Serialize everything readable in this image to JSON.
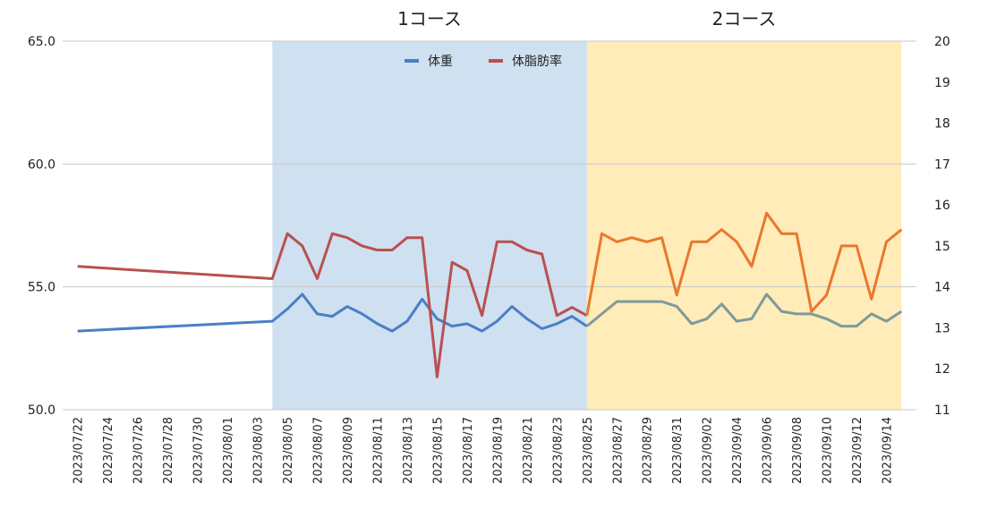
{
  "chart_data": {
    "type": "line",
    "title": "",
    "xlabel": "",
    "ylabel": "",
    "y_left": {
      "min": 50,
      "max": 65,
      "ticks": [
        "50.0",
        "55.0",
        "60.0",
        "65.0"
      ]
    },
    "y_right": {
      "min": 11,
      "max": 20,
      "ticks": [
        "11",
        "12",
        "13",
        "14",
        "15",
        "16",
        "17",
        "18",
        "19",
        "20"
      ]
    },
    "grid": true,
    "legend_position": "top",
    "x_tick_labels": [
      "2023/07/22",
      "2023/07/24",
      "2023/07/26",
      "2023/07/28",
      "2023/07/30",
      "2023/08/01",
      "2023/08/03",
      "2023/08/05",
      "2023/08/07",
      "2023/08/09",
      "2023/08/11",
      "2023/08/13",
      "2023/08/15",
      "2023/08/17",
      "2023/08/19",
      "2023/08/21",
      "2023/08/23",
      "2023/08/25",
      "2023/08/27",
      "2023/08/29",
      "2023/08/31",
      "2023/09/02",
      "2023/09/04",
      "2023/09/06",
      "2023/09/08",
      "2023/09/10",
      "2023/09/12",
      "2023/09/14"
    ],
    "courses": [
      {
        "label": "1コース",
        "start": "2023/08/04",
        "end": "2023/08/25",
        "color": "#cfe0f1"
      },
      {
        "label": "2コース",
        "start": "2023/08/25",
        "end": "2023/09/15",
        "color": "#ffecb8"
      }
    ],
    "series": [
      {
        "name": "体重",
        "axis": "left",
        "color": "#4a7fc4",
        "course2_color": "#7f9a9a",
        "points": [
          [
            "2023/07/22",
            53.2
          ],
          [
            "2023/08/04",
            53.6
          ],
          [
            "2023/08/05",
            54.1
          ],
          [
            "2023/08/06",
            54.7
          ],
          [
            "2023/08/07",
            53.9
          ],
          [
            "2023/08/08",
            53.8
          ],
          [
            "2023/08/09",
            54.2
          ],
          [
            "2023/08/10",
            53.9
          ],
          [
            "2023/08/11",
            53.5
          ],
          [
            "2023/08/12",
            53.2
          ],
          [
            "2023/08/13",
            53.6
          ],
          [
            "2023/08/14",
            54.5
          ],
          [
            "2023/08/15",
            53.7
          ],
          [
            "2023/08/16",
            53.4
          ],
          [
            "2023/08/17",
            53.5
          ],
          [
            "2023/08/18",
            53.2
          ],
          [
            "2023/08/19",
            53.6
          ],
          [
            "2023/08/20",
            54.2
          ],
          [
            "2023/08/21",
            53.7
          ],
          [
            "2023/08/22",
            53.3
          ],
          [
            "2023/08/23",
            53.5
          ],
          [
            "2023/08/24",
            53.8
          ],
          [
            "2023/08/25",
            53.4
          ],
          [
            "2023/08/26",
            53.9
          ],
          [
            "2023/08/27",
            54.4
          ],
          [
            "2023/08/28",
            54.4
          ],
          [
            "2023/08/29",
            54.4
          ],
          [
            "2023/08/30",
            54.4
          ],
          [
            "2023/08/31",
            54.2
          ],
          [
            "2023/09/01",
            53.5
          ],
          [
            "2023/09/02",
            53.7
          ],
          [
            "2023/09/03",
            54.3
          ],
          [
            "2023/09/04",
            53.6
          ],
          [
            "2023/09/05",
            53.7
          ],
          [
            "2023/09/06",
            54.7
          ],
          [
            "2023/09/07",
            54.0
          ],
          [
            "2023/09/08",
            53.9
          ],
          [
            "2023/09/09",
            53.9
          ],
          [
            "2023/09/10",
            53.7
          ],
          [
            "2023/09/11",
            53.4
          ],
          [
            "2023/09/12",
            53.4
          ],
          [
            "2023/09/13",
            53.9
          ],
          [
            "2023/09/14",
            53.6
          ],
          [
            "2023/09/15",
            54.0
          ]
        ]
      },
      {
        "name": "体脂肪率",
        "axis": "right",
        "color": "#b8514f",
        "course2_color": "#e8782e",
        "points": [
          [
            "2023/07/22",
            14.5
          ],
          [
            "2023/08/04",
            14.2
          ],
          [
            "2023/08/05",
            15.3
          ],
          [
            "2023/08/06",
            15.0
          ],
          [
            "2023/08/07",
            14.2
          ],
          [
            "2023/08/08",
            15.3
          ],
          [
            "2023/08/09",
            15.2
          ],
          [
            "2023/08/10",
            15.0
          ],
          [
            "2023/08/11",
            14.9
          ],
          [
            "2023/08/12",
            14.9
          ],
          [
            "2023/08/13",
            15.2
          ],
          [
            "2023/08/14",
            15.2
          ],
          [
            "2023/08/15",
            11.8
          ],
          [
            "2023/08/16",
            14.6
          ],
          [
            "2023/08/17",
            14.4
          ],
          [
            "2023/08/18",
            13.3
          ],
          [
            "2023/08/19",
            15.1
          ],
          [
            "2023/08/20",
            15.1
          ],
          [
            "2023/08/21",
            14.9
          ],
          [
            "2023/08/22",
            14.8
          ],
          [
            "2023/08/23",
            13.3
          ],
          [
            "2023/08/24",
            13.5
          ],
          [
            "2023/08/25",
            13.3
          ],
          [
            "2023/08/26",
            15.3
          ],
          [
            "2023/08/27",
            15.1
          ],
          [
            "2023/08/28",
            15.2
          ],
          [
            "2023/08/29",
            15.1
          ],
          [
            "2023/08/30",
            15.2
          ],
          [
            "2023/08/31",
            13.8
          ],
          [
            "2023/09/01",
            15.1
          ],
          [
            "2023/09/02",
            15.1
          ],
          [
            "2023/09/03",
            15.4
          ],
          [
            "2023/09/04",
            15.1
          ],
          [
            "2023/09/05",
            14.5
          ],
          [
            "2023/09/06",
            15.8
          ],
          [
            "2023/09/07",
            15.3
          ],
          [
            "2023/09/08",
            15.3
          ],
          [
            "2023/09/09",
            13.4
          ],
          [
            "2023/09/10",
            13.8
          ],
          [
            "2023/09/11",
            15.0
          ],
          [
            "2023/09/12",
            15.0
          ],
          [
            "2023/09/13",
            13.7
          ],
          [
            "2023/09/14",
            15.1
          ],
          [
            "2023/09/15",
            15.4
          ]
        ]
      }
    ]
  }
}
